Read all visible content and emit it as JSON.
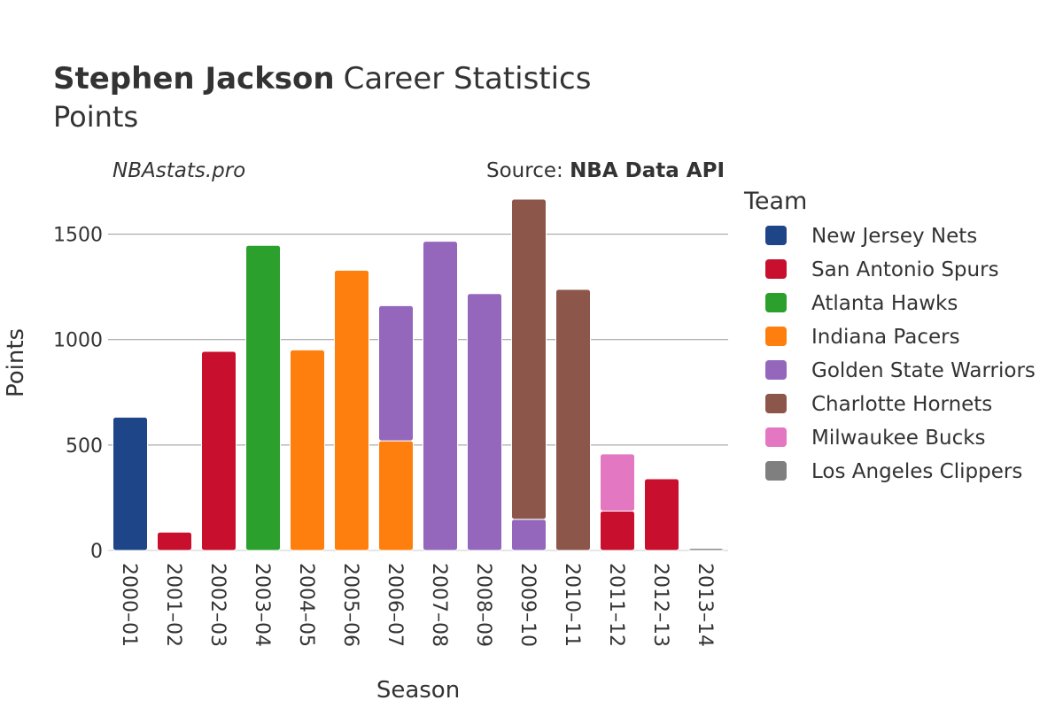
{
  "header": {
    "player": "Stephen Jackson",
    "title_rest": "Career Statistics",
    "subtitle": "Points",
    "watermark": "NBAstats.pro",
    "source_label": "Source: ",
    "source_name": "NBA Data API"
  },
  "legend": {
    "title": "Team",
    "items": [
      {
        "label": "New Jersey Nets",
        "color": "#1f4589"
      },
      {
        "label": "San Antonio Spurs",
        "color": "#c8102e"
      },
      {
        "label": "Atlanta Hawks",
        "color": "#2ca02c"
      },
      {
        "label": "Indiana Pacers",
        "color": "#ff7f0e"
      },
      {
        "label": "Golden State Warriors",
        "color": "#9467bd"
      },
      {
        "label": "Charlotte Hornets",
        "color": "#8c564b"
      },
      {
        "label": "Milwaukee Bucks",
        "color": "#e377c2"
      },
      {
        "label": "Los Angeles Clippers",
        "color": "#7f7f7f"
      }
    ]
  },
  "chart_data": {
    "type": "bar",
    "stacked": true,
    "xlabel": "Season",
    "ylabel": "Points",
    "ylim": [
      0,
      1750
    ],
    "yticks": [
      0,
      500,
      1000,
      1500
    ],
    "grid": true,
    "legend_position": "right",
    "categories": [
      "2000–01",
      "2001–02",
      "2002–03",
      "2003–04",
      "2004–05",
      "2005–06",
      "2006–07",
      "2007–08",
      "2008–09",
      "2009–10",
      "2010–11",
      "2011–12",
      "2012–13",
      "2013–14"
    ],
    "series": [
      {
        "name": "New Jersey Nets",
        "color": "#1f4589",
        "values": [
          632,
          0,
          0,
          0,
          0,
          0,
          0,
          0,
          0,
          0,
          0,
          0,
          0,
          0
        ]
      },
      {
        "name": "San Antonio Spurs",
        "color": "#c8102e",
        "values": [
          0,
          87,
          944,
          0,
          0,
          0,
          0,
          0,
          0,
          0,
          0,
          187,
          340,
          0
        ]
      },
      {
        "name": "Atlanta Hawks",
        "color": "#2ca02c",
        "values": [
          0,
          0,
          0,
          1447,
          0,
          0,
          0,
          0,
          0,
          0,
          0,
          0,
          0,
          0
        ]
      },
      {
        "name": "Indiana Pacers",
        "color": "#ff7f0e",
        "values": [
          0,
          0,
          0,
          0,
          951,
          1329,
          520,
          0,
          0,
          0,
          0,
          0,
          0,
          0
        ]
      },
      {
        "name": "Golden State Warriors",
        "color": "#9467bd",
        "values": [
          0,
          0,
          0,
          0,
          0,
          0,
          641,
          1466,
          1218,
          148,
          0,
          0,
          0,
          0
        ]
      },
      {
        "name": "Charlotte Hornets",
        "color": "#8c564b",
        "values": [
          0,
          0,
          0,
          0,
          0,
          0,
          0,
          0,
          0,
          1518,
          1238,
          0,
          0,
          0
        ]
      },
      {
        "name": "Milwaukee Bucks",
        "color": "#e377c2",
        "values": [
          0,
          0,
          0,
          0,
          0,
          0,
          0,
          0,
          0,
          0,
          0,
          271,
          0,
          0
        ]
      },
      {
        "name": "Los Angeles Clippers",
        "color": "#7f7f7f",
        "values": [
          0,
          0,
          0,
          0,
          0,
          0,
          0,
          0,
          0,
          0,
          0,
          0,
          0,
          10
        ]
      }
    ]
  }
}
